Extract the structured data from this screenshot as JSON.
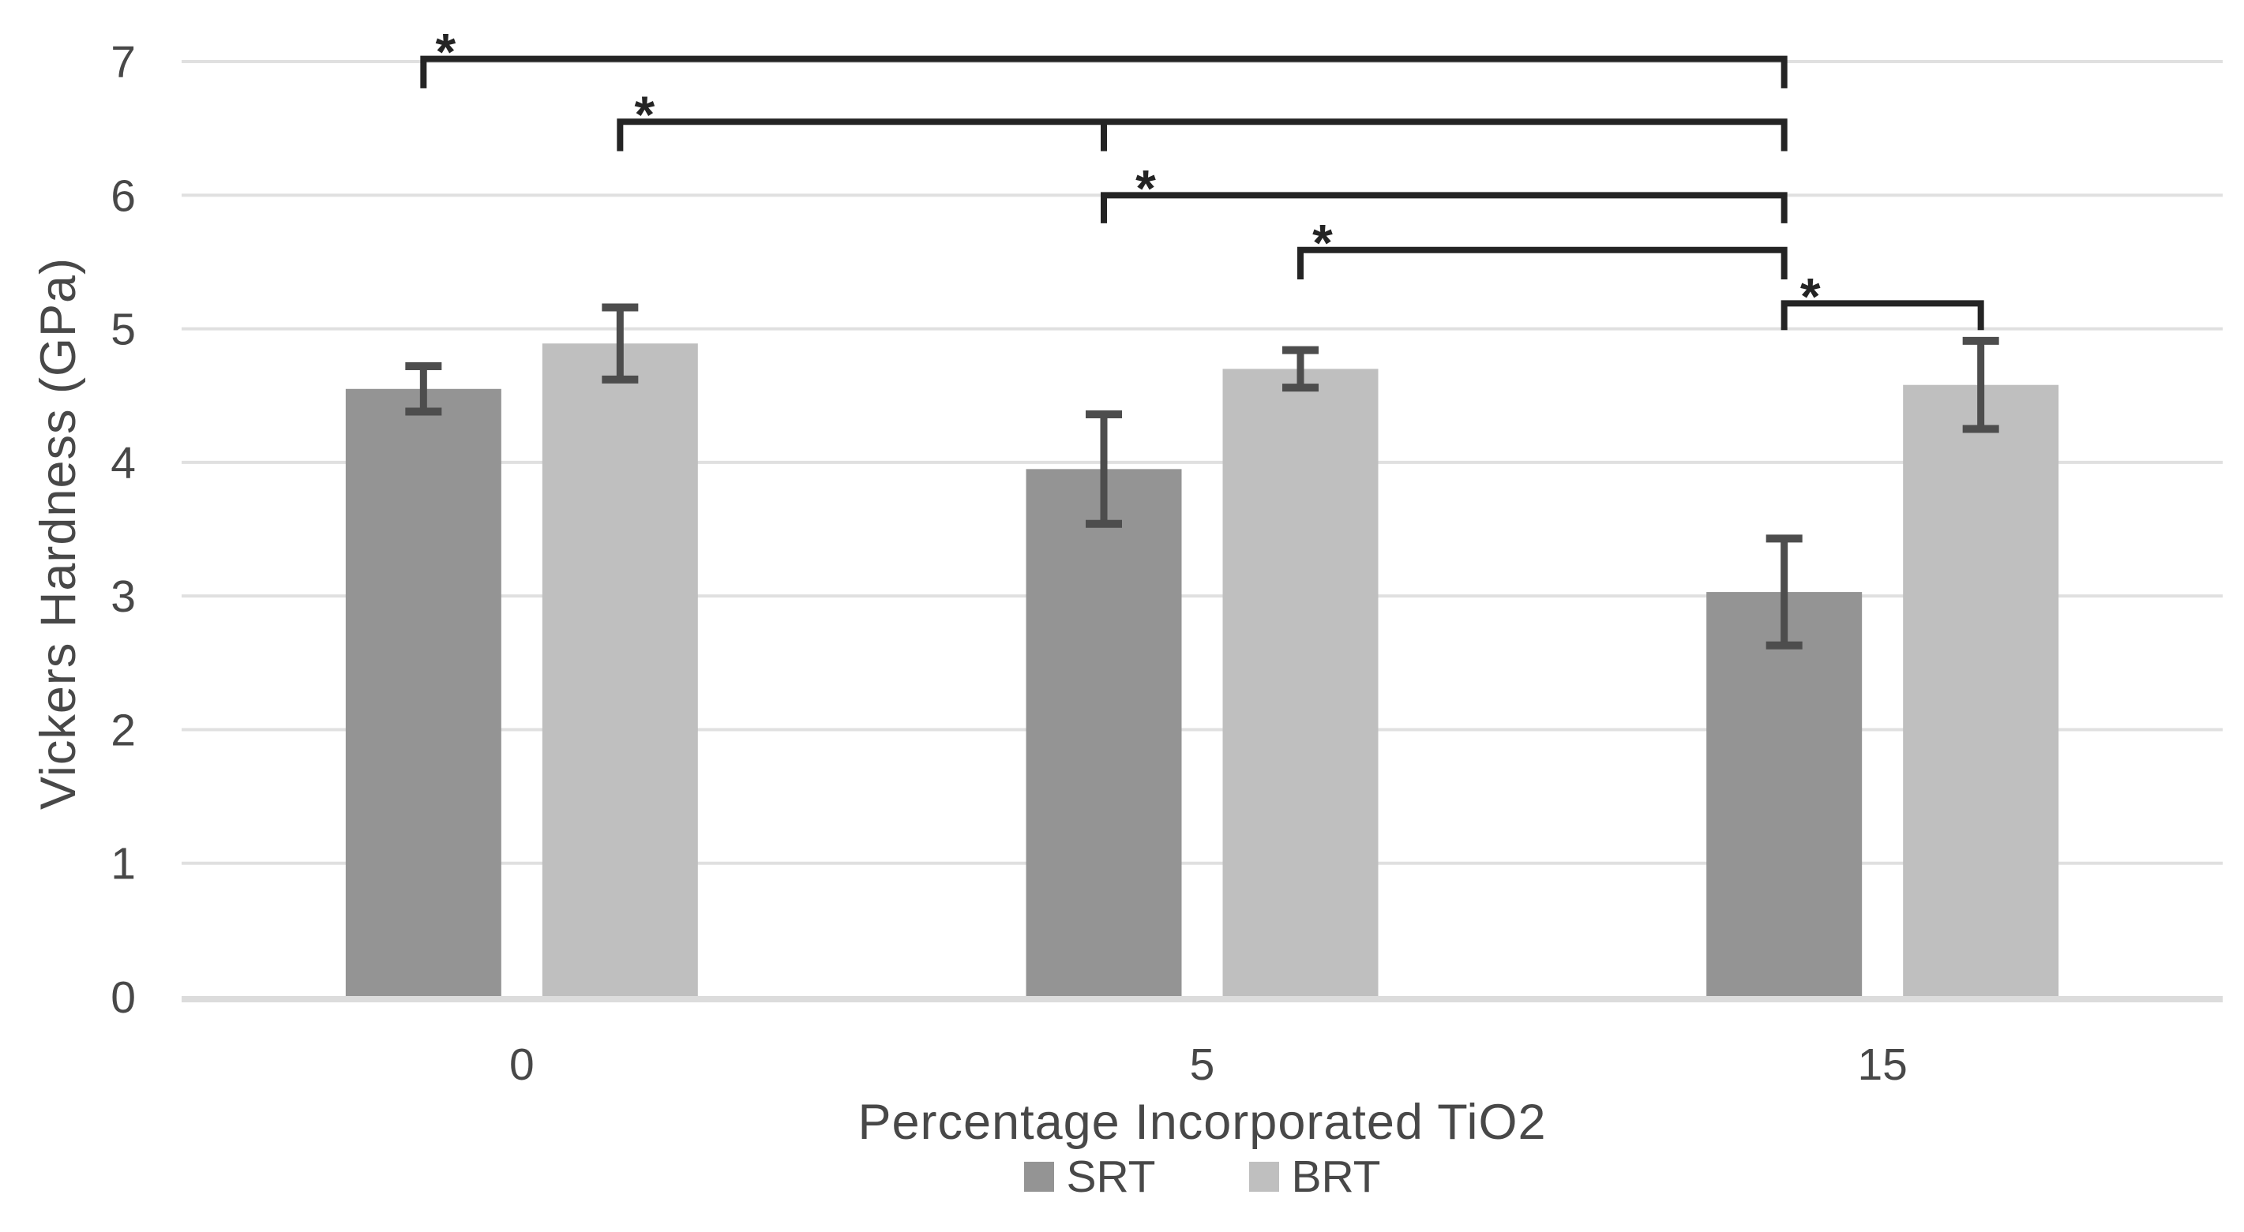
{
  "chart_data": {
    "type": "bar",
    "title": "",
    "xlabel": "Percentage Incorporated TiO2",
    "ylabel": "Vickers Hardness (GPa)",
    "categories": [
      "0",
      "5",
      "15"
    ],
    "series": [
      {
        "name": "SRT",
        "color": "#949494",
        "values": [
          4.55,
          3.95,
          3.03
        ],
        "errors": [
          0.17,
          0.41,
          0.4
        ]
      },
      {
        "name": "BRT",
        "color": "#bfbfbf",
        "values": [
          4.89,
          4.7,
          4.58
        ],
        "errors": [
          0.27,
          0.14,
          0.33
        ]
      }
    ],
    "ylim": [
      0,
      7
    ],
    "yticks": [
      0,
      1,
      2,
      3,
      4,
      5,
      6,
      7
    ],
    "grid": true,
    "legend_position": "bottom",
    "colors": {
      "error_bar": "#4d4d4d",
      "gridline": "#e0e0e0",
      "baseline": "#dcdcdc",
      "bracket": "#242424",
      "text": "#484848"
    },
    "significance_brackets": [
      {
        "star": "*",
        "from": {
          "series": "SRT",
          "category": "0"
        },
        "to": {
          "series": "SRT",
          "category": "15"
        },
        "y": 7.02,
        "drop": 0.22,
        "star_dx": 28
      },
      {
        "star": "*",
        "from": {
          "series": "BRT",
          "category": "0"
        },
        "to": {
          "series": "SRT",
          "category": "15"
        },
        "y": 6.55,
        "drop": 0.22,
        "star_dx": 31,
        "mid_tick": {
          "series": "SRT",
          "category": "5"
        }
      },
      {
        "star": "*",
        "from": {
          "series": "SRT",
          "category": "5"
        },
        "to": {
          "series": "SRT",
          "category": "15"
        },
        "y": 6.0,
        "drop": 0.21,
        "star_dx": 53
      },
      {
        "star": "*",
        "from": {
          "series": "BRT",
          "category": "5"
        },
        "to": {
          "series": "SRT",
          "category": "15"
        },
        "y": 5.59,
        "drop": 0.22,
        "star_dx": 28
      },
      {
        "star": "*",
        "from": {
          "series": "SRT",
          "category": "15"
        },
        "to": {
          "series": "BRT",
          "category": "15"
        },
        "y": 5.19,
        "drop": 0.2,
        "star_dx": 33
      }
    ]
  }
}
